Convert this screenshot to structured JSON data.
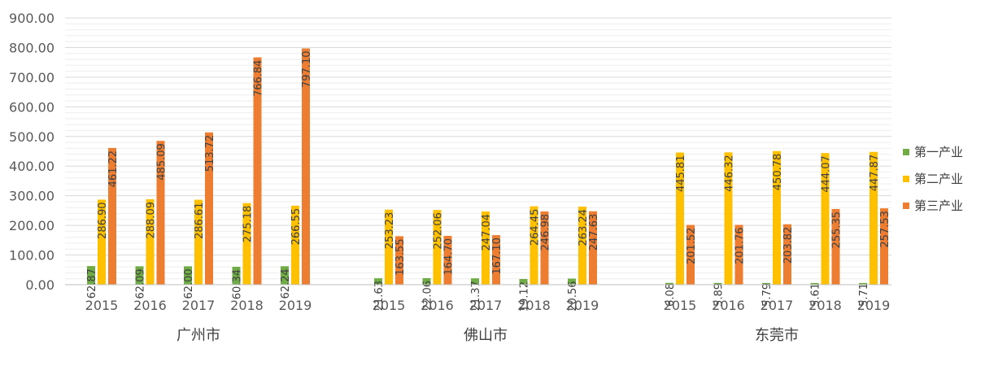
{
  "chart_data": {
    "type": "bar",
    "title": "",
    "xlabel": "",
    "ylabel": "",
    "ylim": [
      0,
      900
    ],
    "ytick_labels": [
      "0.00",
      "100.00",
      "200.00",
      "300.00",
      "400.00",
      "500.00",
      "600.00",
      "700.00",
      "800.00",
      "900.00"
    ],
    "grid": true,
    "legend_position": "right",
    "groups": [
      {
        "name": "广州市",
        "categories": [
          "2015",
          "2016",
          "2017",
          "2018",
          "2019"
        ],
        "series": [
          {
            "name": "第一产业",
            "values": [
              62.87,
              62.09,
              62.0,
              60.34,
              62.24
            ],
            "labels": [
              "62.87",
              "62.09",
              "62.00",
              "60.34",
              "62.24"
            ]
          },
          {
            "name": "第二产业",
            "values": [
              286.9,
              288.09,
              286.61,
              275.18,
              266.55
            ],
            "labels": [
              "286.90",
              "288.09",
              "286.61",
              "275.18",
              "266.55"
            ]
          },
          {
            "name": "第三产业",
            "values": [
              461.22,
              485.09,
              513.72,
              766.84,
              797.1
            ],
            "labels": [
              "461.22",
              "485.09",
              "513.72",
              "766.84",
              "797.10"
            ]
          }
        ]
      },
      {
        "name": "佛山市",
        "categories": [
          "2015",
          "2016",
          "2017",
          "2018",
          "2019"
        ],
        "series": [
          {
            "name": "第一产业",
            "values": [
              21.63,
              22.06,
              21.37,
              19.12,
              20.56
            ],
            "labels": [
              "21.63",
              "22.06",
              "21.37",
              "19.12",
              "20.56"
            ]
          },
          {
            "name": "第二产业",
            "values": [
              253.23,
              252.06,
              247.04,
              264.45,
              263.24
            ],
            "labels": [
              "253.23",
              "252.06",
              "247.04",
              "264.45",
              "263.24"
            ]
          },
          {
            "name": "第三产业",
            "values": [
              163.55,
              164.7,
              167.1,
              246.98,
              247.63
            ],
            "labels": [
              "163.55",
              "164.70",
              "167.10",
              "246.98",
              "247.63"
            ]
          }
        ]
      },
      {
        "name": "东莞市",
        "categories": [
          "2015",
          "2016",
          "2017",
          "2018",
          "2019"
        ],
        "series": [
          {
            "name": "第一产业",
            "values": [
              6.08,
              5.89,
              5.79,
              5.61,
              5.71
            ],
            "labels": [
              "6.08",
              "5.89",
              "5.79",
              "5.61",
              "5.71"
            ]
          },
          {
            "name": "第二产业",
            "values": [
              445.81,
              446.32,
              450.78,
              444.07,
              447.87
            ],
            "labels": [
              "445.81",
              "446.32",
              "450.78",
              "444.07",
              "447.87"
            ]
          },
          {
            "name": "第三产业",
            "values": [
              201.52,
              201.76,
              203.82,
              255.35,
              257.53
            ],
            "labels": [
              "201.52",
              "201.76",
              "203.82",
              "255.35",
              "257.53"
            ]
          }
        ]
      }
    ],
    "legend": [
      {
        "name": "第一产业",
        "color": "#70ad47"
      },
      {
        "name": "第二产业",
        "color": "#ffc000"
      },
      {
        "name": "第三产业",
        "color": "#ed7d31"
      }
    ]
  }
}
